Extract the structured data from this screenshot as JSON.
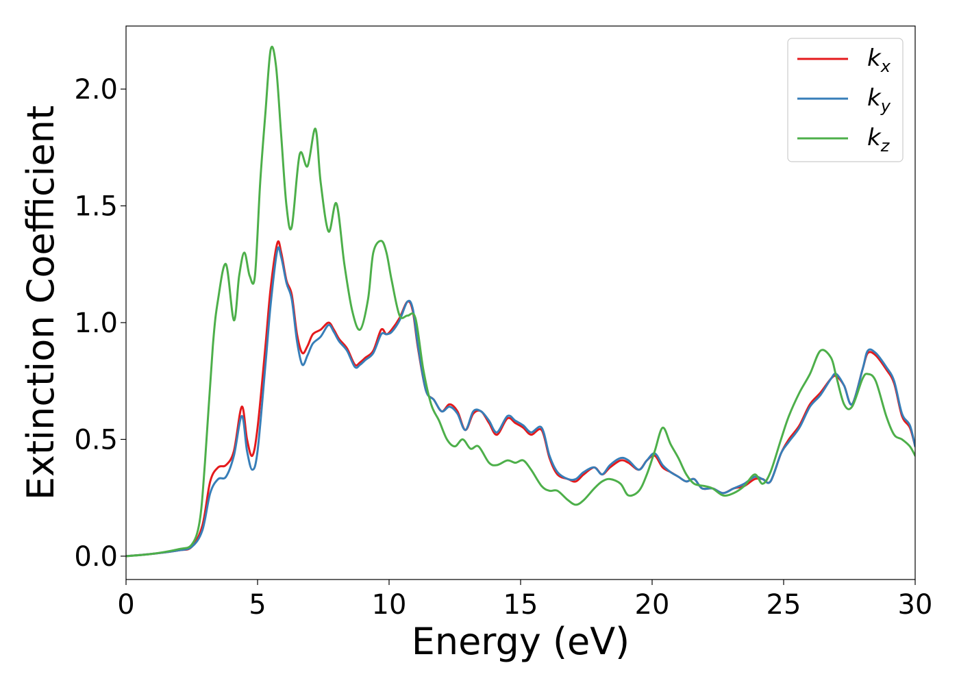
{
  "chart_data": {
    "type": "line",
    "title": "",
    "xlabel": "Energy (eV)",
    "ylabel": "Extinction Coefficient",
    "xlim": [
      0,
      30
    ],
    "ylim": [
      -0.1,
      2.27
    ],
    "xticks": [
      0,
      5,
      10,
      15,
      20,
      25,
      30
    ],
    "xtick_labels": [
      "0",
      "5",
      "10",
      "15",
      "20",
      "25",
      "30"
    ],
    "yticks": [
      0.0,
      0.5,
      1.0,
      1.5,
      2.0
    ],
    "ytick_labels": [
      "0.0",
      "0.5",
      "1.0",
      "1.5",
      "2.0"
    ],
    "grid": false,
    "legend_position": "top-right",
    "series": [
      {
        "name": "k_x",
        "label_base": "k",
        "label_sub": "x",
        "color": "#e41a1c",
        "x": [
          0,
          1,
          2,
          2.5,
          2.9,
          3.2,
          3.5,
          3.8,
          4.1,
          4.4,
          4.6,
          4.8,
          5.0,
          5.3,
          5.5,
          5.75,
          5.9,
          6.1,
          6.3,
          6.5,
          6.7,
          6.9,
          7.1,
          7.4,
          7.7,
          7.9,
          8.1,
          8.4,
          8.7,
          8.9,
          9.1,
          9.4,
          9.7,
          9.9,
          10.1,
          10.4,
          10.7,
          10.9,
          11.1,
          11.4,
          11.7,
          12.0,
          12.3,
          12.6,
          12.9,
          13.2,
          13.5,
          13.8,
          14.1,
          14.5,
          14.8,
          15.1,
          15.4,
          15.8,
          16.1,
          16.4,
          16.8,
          17.1,
          17.4,
          17.8,
          18.1,
          18.4,
          18.8,
          19.1,
          19.5,
          19.8,
          20.1,
          20.4,
          20.7,
          21.0,
          21.3,
          21.6,
          21.9,
          22.3,
          22.7,
          23.1,
          23.5,
          23.9,
          24.2,
          24.5,
          24.9,
          25.2,
          25.6,
          26.0,
          26.4,
          26.8,
          27.0,
          27.3,
          27.6,
          28.0,
          28.2,
          28.5,
          28.9,
          29.2,
          29.5,
          29.8,
          30
        ],
        "y": [
          0,
          0.01,
          0.025,
          0.04,
          0.13,
          0.32,
          0.38,
          0.39,
          0.45,
          0.64,
          0.5,
          0.43,
          0.55,
          0.9,
          1.15,
          1.34,
          1.3,
          1.18,
          1.12,
          0.95,
          0.87,
          0.9,
          0.95,
          0.97,
          1.0,
          0.97,
          0.93,
          0.89,
          0.82,
          0.83,
          0.85,
          0.88,
          0.97,
          0.95,
          0.97,
          1.02,
          1.09,
          1.05,
          0.89,
          0.71,
          0.67,
          0.62,
          0.65,
          0.62,
          0.54,
          0.61,
          0.62,
          0.57,
          0.52,
          0.59,
          0.57,
          0.55,
          0.52,
          0.54,
          0.42,
          0.35,
          0.33,
          0.32,
          0.35,
          0.38,
          0.35,
          0.38,
          0.41,
          0.4,
          0.37,
          0.41,
          0.43,
          0.38,
          0.36,
          0.34,
          0.32,
          0.33,
          0.29,
          0.29,
          0.27,
          0.29,
          0.3,
          0.33,
          0.33,
          0.32,
          0.44,
          0.5,
          0.56,
          0.65,
          0.7,
          0.76,
          0.77,
          0.73,
          0.65,
          0.8,
          0.87,
          0.86,
          0.8,
          0.74,
          0.6,
          0.55,
          0.47
        ]
      },
      {
        "name": "k_y",
        "label_base": "k",
        "label_sub": "y",
        "color": "#377eb8",
        "x": [
          0,
          1,
          2,
          2.5,
          2.9,
          3.2,
          3.5,
          3.8,
          4.1,
          4.4,
          4.6,
          4.8,
          5.0,
          5.3,
          5.5,
          5.75,
          5.9,
          6.1,
          6.3,
          6.5,
          6.7,
          6.9,
          7.1,
          7.4,
          7.7,
          7.9,
          8.1,
          8.4,
          8.7,
          8.9,
          9.1,
          9.4,
          9.7,
          9.9,
          10.1,
          10.4,
          10.7,
          10.9,
          11.1,
          11.4,
          11.7,
          12.0,
          12.3,
          12.6,
          12.9,
          13.2,
          13.5,
          13.8,
          14.1,
          14.5,
          14.8,
          15.1,
          15.4,
          15.8,
          16.1,
          16.4,
          16.8,
          17.1,
          17.4,
          17.8,
          18.1,
          18.4,
          18.8,
          19.1,
          19.5,
          19.8,
          20.1,
          20.4,
          20.7,
          21.0,
          21.3,
          21.6,
          21.9,
          22.3,
          22.7,
          23.1,
          23.5,
          23.9,
          24.2,
          24.5,
          24.9,
          25.2,
          25.6,
          26.0,
          26.4,
          26.8,
          27.0,
          27.3,
          27.6,
          28.0,
          28.2,
          28.5,
          28.9,
          29.2,
          29.5,
          29.8,
          30
        ],
        "y": [
          0,
          0.01,
          0.025,
          0.04,
          0.11,
          0.27,
          0.33,
          0.34,
          0.43,
          0.6,
          0.45,
          0.37,
          0.45,
          0.82,
          1.08,
          1.31,
          1.28,
          1.17,
          1.1,
          0.92,
          0.82,
          0.86,
          0.91,
          0.94,
          0.99,
          0.96,
          0.92,
          0.88,
          0.81,
          0.82,
          0.84,
          0.87,
          0.95,
          0.95,
          0.96,
          1.01,
          1.09,
          1.06,
          0.9,
          0.71,
          0.67,
          0.62,
          0.64,
          0.61,
          0.54,
          0.62,
          0.62,
          0.58,
          0.53,
          0.6,
          0.58,
          0.56,
          0.53,
          0.55,
          0.43,
          0.36,
          0.33,
          0.33,
          0.36,
          0.38,
          0.35,
          0.39,
          0.42,
          0.41,
          0.37,
          0.41,
          0.44,
          0.39,
          0.36,
          0.34,
          0.32,
          0.33,
          0.29,
          0.29,
          0.27,
          0.29,
          0.31,
          0.34,
          0.33,
          0.32,
          0.44,
          0.49,
          0.55,
          0.64,
          0.69,
          0.76,
          0.78,
          0.73,
          0.65,
          0.8,
          0.88,
          0.87,
          0.81,
          0.75,
          0.61,
          0.56,
          0.47
        ]
      },
      {
        "name": "k_z",
        "label_base": "k",
        "label_sub": "z",
        "color": "#4daf4a",
        "x": [
          0,
          1,
          2,
          2.5,
          2.8,
          3.0,
          3.3,
          3.5,
          3.8,
          4.1,
          4.3,
          4.5,
          4.7,
          4.9,
          5.1,
          5.3,
          5.5,
          5.7,
          5.9,
          6.1,
          6.3,
          6.6,
          6.9,
          7.2,
          7.4,
          7.7,
          8.0,
          8.3,
          8.6,
          8.9,
          9.2,
          9.4,
          9.7,
          9.9,
          10.1,
          10.4,
          10.7,
          11.0,
          11.3,
          11.6,
          11.9,
          12.2,
          12.5,
          12.8,
          13.1,
          13.4,
          13.8,
          14.1,
          14.5,
          14.8,
          15.1,
          15.4,
          15.8,
          16.1,
          16.4,
          16.8,
          17.1,
          17.4,
          17.8,
          18.1,
          18.4,
          18.8,
          19.1,
          19.5,
          19.8,
          20.1,
          20.4,
          20.7,
          21.0,
          21.3,
          21.6,
          22.0,
          22.3,
          22.7,
          23.1,
          23.5,
          23.9,
          24.2,
          24.5,
          24.9,
          25.2,
          25.6,
          26.0,
          26.4,
          26.8,
          27.0,
          27.3,
          27.6,
          28.0,
          28.2,
          28.5,
          28.9,
          29.2,
          29.5,
          29.8,
          30
        ],
        "y": [
          0,
          0.01,
          0.03,
          0.05,
          0.15,
          0.4,
          0.9,
          1.1,
          1.25,
          1.01,
          1.2,
          1.3,
          1.2,
          1.2,
          1.6,
          1.9,
          2.17,
          2.1,
          1.8,
          1.5,
          1.41,
          1.72,
          1.67,
          1.83,
          1.6,
          1.39,
          1.51,
          1.25,
          1.05,
          0.97,
          1.1,
          1.3,
          1.35,
          1.3,
          1.18,
          1.03,
          1.03,
          1.02,
          0.8,
          0.65,
          0.58,
          0.5,
          0.47,
          0.5,
          0.46,
          0.47,
          0.4,
          0.39,
          0.41,
          0.4,
          0.41,
          0.37,
          0.3,
          0.28,
          0.28,
          0.24,
          0.22,
          0.24,
          0.29,
          0.32,
          0.33,
          0.31,
          0.26,
          0.28,
          0.35,
          0.45,
          0.55,
          0.48,
          0.42,
          0.35,
          0.31,
          0.3,
          0.29,
          0.26,
          0.27,
          0.3,
          0.35,
          0.31,
          0.36,
          0.5,
          0.6,
          0.7,
          0.78,
          0.88,
          0.85,
          0.77,
          0.65,
          0.64,
          0.76,
          0.78,
          0.75,
          0.6,
          0.52,
          0.5,
          0.47,
          0.43
        ]
      }
    ]
  }
}
